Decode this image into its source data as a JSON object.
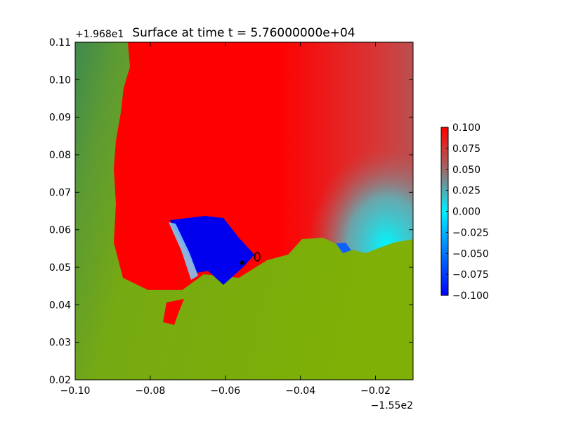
{
  "chart_data": {
    "type": "heatmap",
    "title": "Surface at time t = 5.76000000e+04",
    "xlabel": "",
    "ylabel": "",
    "xlim": [
      -0.1,
      -0.01
    ],
    "ylim": [
      0.02,
      0.11
    ],
    "x_ticks": [
      -0.1,
      -0.08,
      -0.06,
      -0.04,
      -0.02
    ],
    "x_tick_labels": [
      "−0.10",
      "−0.08",
      "−0.06",
      "−0.04",
      "−0.02"
    ],
    "y_ticks": [
      0.02,
      0.03,
      0.04,
      0.05,
      0.06,
      0.07,
      0.08,
      0.09,
      0.1,
      0.11
    ],
    "y_tick_labels": [
      "0.02",
      "0.03",
      "0.04",
      "0.05",
      "0.06",
      "0.07",
      "0.08",
      "0.09",
      "0.10",
      "0.11"
    ],
    "x_offset_label": "−1.55e2",
    "y_offset_label": "+1.968e1",
    "colorbar": {
      "vmin": -0.1,
      "vmax": 0.1,
      "ticks": [
        0.1,
        0.075,
        0.05,
        0.025,
        0.0,
        -0.025,
        -0.05,
        -0.075,
        -0.1
      ],
      "tick_labels": [
        "0.100",
        "0.075",
        "0.050",
        "0.025",
        "0.000",
        "−0.025",
        "−0.050",
        "−0.075",
        "−0.100"
      ],
      "colors": [
        "#0000ff",
        "#00eeff",
        "#c84848",
        "#ff0000"
      ]
    },
    "regions": [
      {
        "kind": "saturated-positive",
        "color": "#ff0000"
      },
      {
        "kind": "saturated-negative",
        "color": "#0000ee"
      },
      {
        "kind": "land",
        "color": "#7aae0a"
      }
    ],
    "markers": [
      {
        "kind": "point",
        "x": -0.0555,
        "y": 0.0512
      },
      {
        "kind": "gauge-label",
        "text": "0",
        "x": -0.0515,
        "y": 0.0529
      }
    ]
  }
}
